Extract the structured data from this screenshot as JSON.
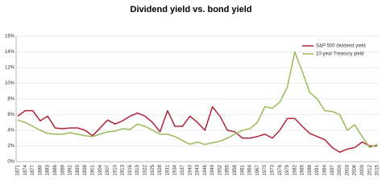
{
  "chart_data": {
    "type": "line",
    "title": "Dividend yield vs. bond yield",
    "x": [
      1871,
      1874,
      1877,
      1880,
      1883,
      1886,
      1889,
      1892,
      1895,
      1898,
      1901,
      1904,
      1907,
      1910,
      1913,
      1916,
      1919,
      1922,
      1925,
      1928,
      1931,
      1934,
      1937,
      1940,
      1943,
      1946,
      1949,
      1952,
      1955,
      1958,
      1961,
      1964,
      1967,
      1970,
      1973,
      1976,
      1979,
      1982,
      1985,
      1988,
      1991,
      1994,
      1997,
      2000,
      2003,
      2006,
      2009,
      2012,
      2015
    ],
    "series": [
      {
        "name": "S&P 500 dividend yield",
        "color": "#b0243a",
        "values": [
          5.8,
          6.5,
          6.5,
          5.2,
          5.8,
          4.3,
          4.2,
          4.3,
          4.3,
          4.0,
          3.3,
          4.3,
          5.3,
          4.8,
          5.2,
          5.8,
          6.2,
          5.8,
          5.0,
          3.8,
          6.5,
          4.5,
          4.5,
          5.8,
          5.0,
          4.0,
          7.0,
          5.8,
          4.0,
          3.8,
          3.0,
          3.0,
          3.2,
          3.5,
          3.0,
          4.0,
          5.5,
          5.5,
          4.5,
          3.6,
          3.2,
          2.8,
          1.8,
          1.2,
          1.6,
          1.8,
          2.5,
          2.0,
          2.0
        ]
      },
      {
        "name": "10-year Treasury yield",
        "color": "#9bbb59",
        "values": [
          5.3,
          5.0,
          4.5,
          4.0,
          3.6,
          3.5,
          3.5,
          3.7,
          3.5,
          3.3,
          3.2,
          3.5,
          3.8,
          3.9,
          4.2,
          4.1,
          4.8,
          4.5,
          4.0,
          3.5,
          3.5,
          3.2,
          2.7,
          2.2,
          2.5,
          2.2,
          2.4,
          2.6,
          3.0,
          3.5,
          4.0,
          4.2,
          5.0,
          7.0,
          6.8,
          7.6,
          9.5,
          14.0,
          11.5,
          8.8,
          8.0,
          6.5,
          6.4,
          6.0,
          4.0,
          4.7,
          3.2,
          1.8,
          2.2
        ]
      }
    ],
    "ylim": [
      0,
      16
    ],
    "yticks": [
      {
        "value": 0,
        "label": "0%"
      },
      {
        "value": 2,
        "label": "2%"
      },
      {
        "value": 4,
        "label": "4%"
      },
      {
        "value": 6,
        "label": "6%"
      },
      {
        "value": 8,
        "label": "8%"
      },
      {
        "value": 10,
        "label": "10%"
      },
      {
        "value": 12,
        "label": "12%"
      },
      {
        "value": 14,
        "label": "14%"
      },
      {
        "value": 16,
        "label": "16%"
      }
    ],
    "grid": true,
    "legend": "upper right"
  }
}
